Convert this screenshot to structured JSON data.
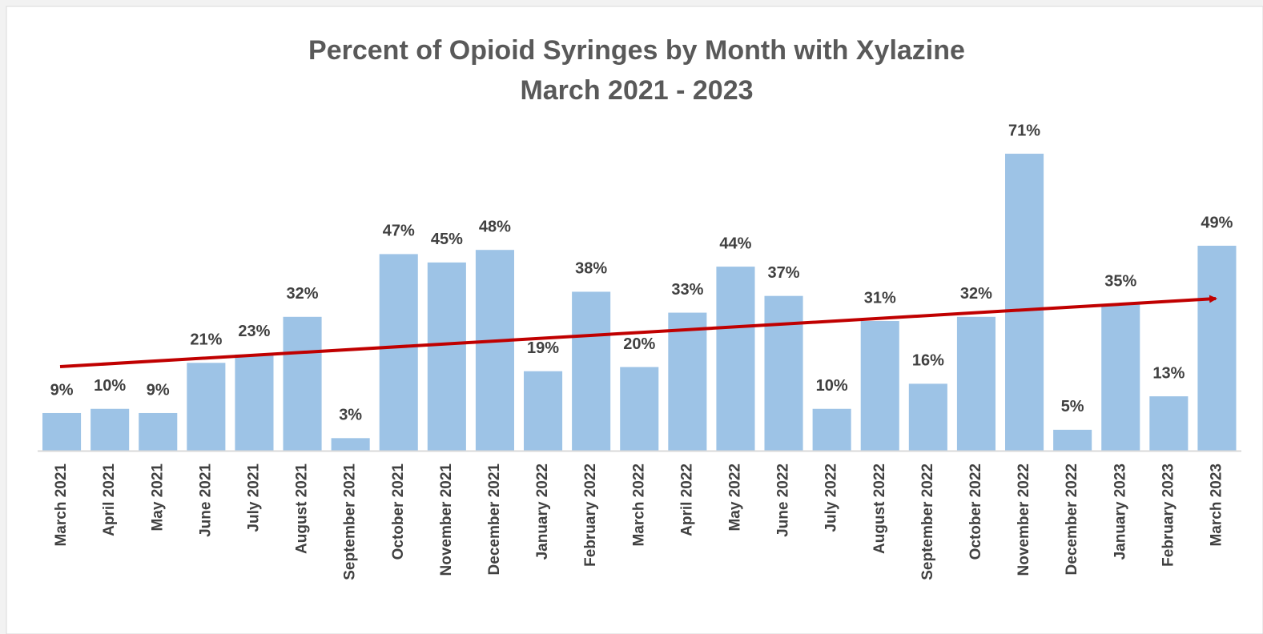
{
  "chart_data": {
    "type": "bar",
    "title": "Percent of Opioid Syringes by Month with Xylazine",
    "subtitle": "March 2021 - 2023",
    "categories": [
      "March 2021",
      "April 2021",
      "May 2021",
      "June 2021",
      "July 2021",
      "August 2021",
      "September 2021",
      "October 2021",
      "November 2021",
      "December 2021",
      "January 2022",
      "February 2022",
      "March 2022",
      "April 2022",
      "May 2022",
      "June 2022",
      "July 2022",
      "August 2022",
      "September 2022",
      "October 2022",
      "November 2022",
      "December 2022",
      "January 2023",
      "February 2023",
      "March 2023"
    ],
    "values": [
      9,
      10,
      9,
      21,
      23,
      32,
      3,
      47,
      45,
      48,
      19,
      38,
      20,
      33,
      44,
      37,
      10,
      31,
      16,
      32,
      71,
      5,
      35,
      13,
      49
    ],
    "value_labels": [
      "9%",
      "10%",
      "9%",
      "21%",
      "23%",
      "32%",
      "3%",
      "47%",
      "45%",
      "48%",
      "19%",
      "38%",
      "20%",
      "33%",
      "44%",
      "37%",
      "10%",
      "31%",
      "16%",
      "32%",
      "71%",
      "5%",
      "35%",
      "13%",
      "49%"
    ],
    "color": "#9dc3e6",
    "ylim": [
      0,
      80
    ]
  }
}
